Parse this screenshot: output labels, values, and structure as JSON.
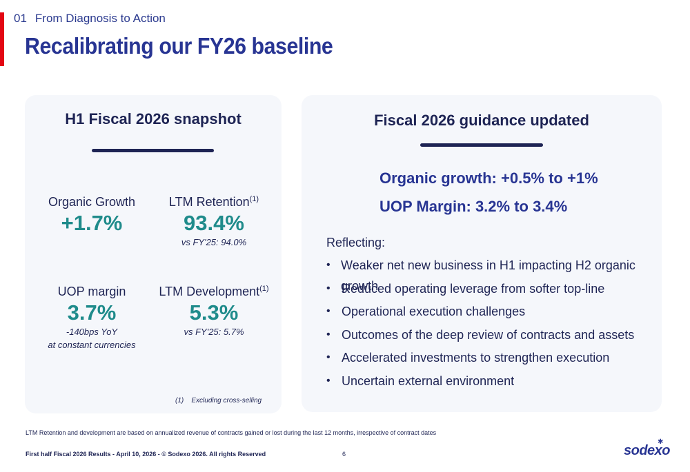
{
  "header": {
    "section_number": "01",
    "section_title": "From Diagnosis to Action",
    "title": "Recalibrating our FY26 baseline"
  },
  "snapshot": {
    "title": "H1 Fiscal 2026 snapshot",
    "metrics": [
      {
        "label": "Organic Growth",
        "sup": "",
        "value": "+1.7%",
        "sub1": "",
        "sub2": ""
      },
      {
        "label": "LTM Retention",
        "sup": "(1)",
        "value": "93.4%",
        "sub1": "vs FY'25: 94.0%",
        "sub2": ""
      },
      {
        "label": "UOP margin",
        "sup": "",
        "value": "3.7%",
        "sub1": "-140bps YoY",
        "sub2": "at constant currencies"
      },
      {
        "label": "LTM Development",
        "sup": "(1)",
        "value": "5.3%",
        "sub1": "vs FY'25: 5.7%",
        "sub2": ""
      }
    ],
    "footnote_marker": "(1)",
    "footnote_text": "Excluding cross-selling"
  },
  "guidance": {
    "title": "Fiscal 2026 guidance updated",
    "organic_growth": "Organic growth: +0.5% to +1%",
    "uop_margin": "UOP Margin: 3.2% to 3.4%",
    "reflecting_label": "Reflecting:",
    "bullet_char": "•",
    "bullets": [
      "Weaker net new business in H1 impacting H2 organic growth",
      "Reduced operating leverage from softer top-line",
      "Operational execution challenges",
      "Outcomes of the deep review of contracts and assets",
      "Accelerated investments to strengthen execution",
      "Uncertain external environment"
    ]
  },
  "bottom_note": "LTM Retention and development are based on annualized revenue of contracts gained or lost during the last 12 months, irrespective of contract dates",
  "footer": {
    "text": "First half Fiscal 2026 Results - April 10, 2026 - © Sodexo 2026. All rights Reserved",
    "page_number": "6",
    "logo_text": "sodexo",
    "logo_star": "✱"
  },
  "colors": {
    "accent_red": "#e30613",
    "title_blue": "#283593",
    "navy": "#1e2454",
    "teal": "#1f8b8b",
    "card_bg": "#f5f7fb"
  }
}
